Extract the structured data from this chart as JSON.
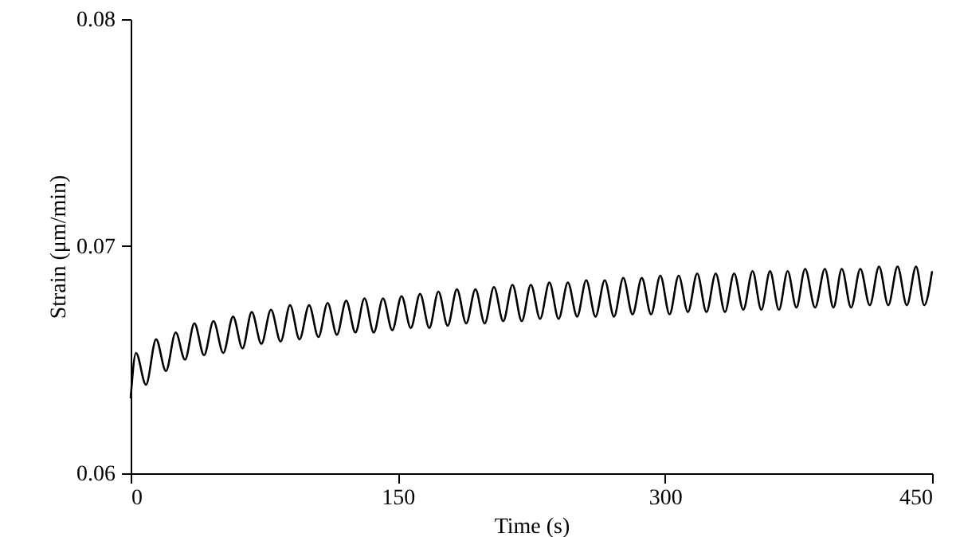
{
  "chart_data": {
    "type": "line",
    "xlabel": "Time (s)",
    "ylabel": "Strain (μm/min)",
    "x": [
      0,
      3.0,
      8.6,
      14.3,
      19.8,
      25.3,
      30.5,
      35.8,
      41.2,
      46.5,
      52.0,
      57.5,
      62.8,
      68.0,
      73.4,
      78.8,
      84.2,
      89.5,
      94.8,
      100.2,
      105.4,
      110.6,
      115.8,
      121.0,
      126.2,
      131.3,
      136.5,
      141.7,
      146.9,
      152.1,
      157.3,
      162.5,
      167.7,
      172.8,
      178.0,
      183.2,
      188.4,
      193.6,
      198.8,
      204.0,
      209.2,
      214.4,
      219.6,
      224.7,
      229.9,
      235.1,
      240.3,
      245.5,
      250.7,
      255.8,
      261.0,
      266.2,
      271.4,
      276.6,
      281.8,
      287.0,
      292.2,
      297.4,
      302.6,
      307.7,
      312.9,
      318.1,
      323.3,
      328.5,
      333.7,
      338.8,
      344.0,
      349.2,
      354.1,
      359.0,
      364.0,
      368.9,
      373.8,
      378.7,
      384.3,
      389.8,
      394.6,
      399.3,
      404.5,
      409.7,
      415.0,
      420.2,
      425.4,
      430.6,
      435.8,
      441.0,
      445.6,
      450
    ],
    "series": [
      {
        "color": "#000000",
        "values": [
          0.0633,
          0.0653,
          0.0639,
          0.0659,
          0.0645,
          0.0662,
          0.065,
          0.0666,
          0.0652,
          0.0667,
          0.0653,
          0.0669,
          0.0655,
          0.0671,
          0.0657,
          0.0672,
          0.0658,
          0.0674,
          0.0659,
          0.0674,
          0.066,
          0.0675,
          0.0661,
          0.0676,
          0.0662,
          0.0677,
          0.0662,
          0.0677,
          0.0663,
          0.0678,
          0.0664,
          0.0679,
          0.0664,
          0.068,
          0.0665,
          0.0681,
          0.0666,
          0.0681,
          0.0666,
          0.0682,
          0.0667,
          0.0683,
          0.0667,
          0.0683,
          0.0668,
          0.0684,
          0.0668,
          0.0684,
          0.0669,
          0.0685,
          0.0669,
          0.0685,
          0.0669,
          0.0686,
          0.067,
          0.0686,
          0.067,
          0.0687,
          0.067,
          0.0687,
          0.0671,
          0.0688,
          0.0671,
          0.0688,
          0.0671,
          0.0688,
          0.0672,
          0.0689,
          0.0672,
          0.0689,
          0.0672,
          0.0689,
          0.0673,
          0.069,
          0.0673,
          0.069,
          0.0673,
          0.069,
          0.0673,
          0.069,
          0.0674,
          0.0691,
          0.0674,
          0.0691,
          0.0674,
          0.0691,
          0.0674,
          0.0689
        ]
      }
    ],
    "xlim": [
      0,
      450
    ],
    "xticks": [
      0,
      150,
      300,
      450
    ],
    "ylim": [
      0.06,
      0.08
    ],
    "yticks": [
      0.06,
      0.07,
      0.08
    ],
    "grid": false,
    "marker": "none",
    "line_style": "solid"
  }
}
